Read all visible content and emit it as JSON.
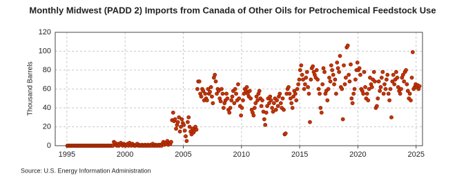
{
  "chart_data": {
    "type": "scatter",
    "title": "Monthly Midwest (PADD 2) Imports from Canada of Other Oils for Petrochemical Feedstock Use",
    "y_label": "Thousand Barrels",
    "source": "Source: U.S. Energy Information Administration",
    "color": "#c83200",
    "grid": true,
    "xlim": [
      1994,
      2025.55
    ],
    "ylim": [
      0,
      120
    ],
    "xticks": [
      1995,
      2000,
      2005,
      2010,
      2015,
      2020,
      2025
    ],
    "yticks": [
      0,
      20,
      40,
      60,
      80,
      100,
      120
    ],
    "x": [
      1995.04,
      1995.13,
      1995.21,
      1995.29,
      1995.38,
      1995.46,
      1995.54,
      1995.63,
      1995.71,
      1995.79,
      1995.88,
      1995.96,
      1996.04,
      1996.13,
      1996.21,
      1996.29,
      1996.38,
      1996.46,
      1996.54,
      1996.63,
      1996.71,
      1996.79,
      1996.88,
      1996.96,
      1997.04,
      1997.13,
      1997.21,
      1997.29,
      1997.38,
      1997.46,
      1997.54,
      1997.63,
      1997.71,
      1997.79,
      1997.88,
      1997.96,
      1998.04,
      1998.13,
      1998.21,
      1998.29,
      1998.38,
      1998.46,
      1998.54,
      1998.63,
      1998.71,
      1998.79,
      1998.88,
      1998.96,
      1999.04,
      1999.13,
      1999.21,
      1999.29,
      1999.38,
      1999.46,
      1999.54,
      1999.63,
      1999.71,
      1999.79,
      1999.88,
      1999.96,
      2000.04,
      2000.13,
      2000.21,
      2000.29,
      2000.38,
      2000.46,
      2000.54,
      2000.63,
      2000.71,
      2000.79,
      2000.88,
      2000.96,
      2001.04,
      2001.13,
      2001.21,
      2001.29,
      2001.38,
      2001.46,
      2001.54,
      2001.63,
      2001.71,
      2001.79,
      2001.88,
      2001.96,
      2002.04,
      2002.13,
      2002.21,
      2002.29,
      2002.38,
      2002.46,
      2002.54,
      2002.63,
      2002.71,
      2002.79,
      2002.88,
      2002.96,
      2003.04,
      2003.13,
      2003.21,
      2003.29,
      2003.38,
      2003.46,
      2003.54,
      2003.63,
      2003.71,
      2003.79,
      2003.88,
      2003.96,
      2004.04,
      2004.13,
      2004.21,
      2004.29,
      2004.38,
      2004.46,
      2004.54,
      2004.63,
      2004.71,
      2004.79,
      2004.88,
      2004.96,
      2005.04,
      2005.13,
      2005.21,
      2005.29,
      2005.38,
      2005.46,
      2005.54,
      2005.63,
      2005.71,
      2005.79,
      2005.88,
      2005.96,
      2006.04,
      2006.13,
      2006.21,
      2006.29,
      2006.38,
      2006.46,
      2006.54,
      2006.63,
      2006.71,
      2006.79,
      2006.88,
      2006.96,
      2007.04,
      2007.13,
      2007.21,
      2007.29,
      2007.38,
      2007.46,
      2007.54,
      2007.63,
      2007.71,
      2007.79,
      2007.88,
      2007.96,
      2008.04,
      2008.13,
      2008.21,
      2008.29,
      2008.38,
      2008.46,
      2008.54,
      2008.63,
      2008.71,
      2008.79,
      2008.88,
      2008.96,
      2009.04,
      2009.13,
      2009.21,
      2009.29,
      2009.38,
      2009.46,
      2009.54,
      2009.63,
      2009.71,
      2009.79,
      2009.88,
      2009.96,
      2010.04,
      2010.13,
      2010.21,
      2010.29,
      2010.38,
      2010.46,
      2010.54,
      2010.63,
      2010.71,
      2010.79,
      2010.88,
      2010.96,
      2011.04,
      2011.13,
      2011.21,
      2011.29,
      2011.38,
      2011.46,
      2011.54,
      2011.63,
      2011.71,
      2011.79,
      2011.88,
      2011.96,
      2012.04,
      2012.13,
      2012.21,
      2012.29,
      2012.38,
      2012.46,
      2012.54,
      2012.63,
      2012.71,
      2012.79,
      2012.88,
      2012.96,
      2013.04,
      2013.13,
      2013.21,
      2013.29,
      2013.38,
      2013.46,
      2013.54,
      2013.63,
      2013.71,
      2013.79,
      2013.88,
      2013.96,
      2014.04,
      2014.13,
      2014.21,
      2014.29,
      2014.38,
      2014.46,
      2014.54,
      2014.63,
      2014.71,
      2014.79,
      2014.88,
      2014.96,
      2015.04,
      2015.13,
      2015.21,
      2015.29,
      2015.38,
      2015.46,
      2015.54,
      2015.63,
      2015.71,
      2015.79,
      2015.88,
      2015.96,
      2016.04,
      2016.13,
      2016.21,
      2016.29,
      2016.38,
      2016.46,
      2016.54,
      2016.63,
      2016.71,
      2016.79,
      2016.88,
      2016.96,
      2017.04,
      2017.13,
      2017.21,
      2017.29,
      2017.38,
      2017.46,
      2017.54,
      2017.63,
      2017.71,
      2017.79,
      2017.88,
      2017.96,
      2018.04,
      2018.13,
      2018.21,
      2018.29,
      2018.38,
      2018.46,
      2018.54,
      2018.63,
      2018.71,
      2018.79,
      2018.88,
      2018.96,
      2019.04,
      2019.13,
      2019.21,
      2019.29,
      2019.38,
      2019.46,
      2019.54,
      2019.63,
      2019.71,
      2019.79,
      2019.88,
      2019.96,
      2020.04,
      2020.13,
      2020.21,
      2020.29,
      2020.38,
      2020.46,
      2020.54,
      2020.63,
      2020.71,
      2020.79,
      2020.88,
      2020.96,
      2021.04,
      2021.13,
      2021.21,
      2021.29,
      2021.38,
      2021.46,
      2021.54,
      2021.63,
      2021.71,
      2021.79,
      2021.88,
      2021.96,
      2022.04,
      2022.13,
      2022.21,
      2022.29,
      2022.38,
      2022.46,
      2022.54,
      2022.63,
      2022.71,
      2022.79,
      2022.88,
      2022.96,
      2023.04,
      2023.13,
      2023.21,
      2023.29,
      2023.38,
      2023.46,
      2023.54,
      2023.63,
      2023.71,
      2023.79,
      2023.88,
      2023.96,
      2024.04,
      2024.13,
      2024.21,
      2024.29,
      2024.38,
      2024.46,
      2024.54,
      2024.63,
      2024.71,
      2024.79,
      2024.88,
      2024.96,
      2025.04,
      2025.13,
      2025.21,
      2025.29
    ],
    "values": [
      0,
      0,
      0,
      0,
      0,
      0,
      0,
      0,
      0,
      0,
      0,
      0,
      0,
      0,
      0,
      0,
      0,
      0,
      0,
      0,
      0,
      0,
      0,
      0,
      0,
      0,
      0,
      0,
      0,
      0,
      0,
      0,
      0,
      0,
      0,
      0,
      0,
      0,
      0,
      0,
      0,
      0,
      0,
      0,
      0,
      0,
      0,
      0,
      4,
      3,
      1,
      0,
      2,
      0,
      1,
      3,
      1,
      0,
      2,
      1,
      0,
      1,
      2,
      0,
      3,
      1,
      0,
      2,
      1,
      0,
      0,
      1,
      2,
      0,
      1,
      0,
      0,
      1,
      0,
      0,
      1,
      0,
      0,
      1,
      0,
      0,
      1,
      0,
      2,
      0,
      0,
      1,
      0,
      0,
      1,
      0,
      1,
      0,
      2,
      4,
      1,
      3,
      2,
      5,
      1,
      3,
      2,
      4,
      27,
      35,
      26,
      28,
      18,
      22,
      25,
      30,
      15,
      20,
      28,
      24,
      22,
      16,
      10,
      5,
      25,
      30,
      20,
      15,
      12,
      18,
      14,
      16,
      20,
      17,
      60,
      68,
      68,
      55,
      52,
      60,
      58,
      48,
      55,
      50,
      48,
      60,
      55,
      57,
      62,
      52,
      45,
      72,
      75,
      68,
      55,
      60,
      58,
      50,
      47,
      60,
      55,
      40,
      45,
      48,
      55,
      50,
      38,
      35,
      40,
      48,
      52,
      58,
      45,
      60,
      55,
      48,
      65,
      50,
      42,
      32,
      40,
      48,
      55,
      60,
      58,
      62,
      55,
      52,
      58,
      50,
      38,
      35,
      32,
      40,
      45,
      52,
      48,
      55,
      58,
      50,
      42,
      48,
      36,
      28,
      22,
      35,
      42,
      50,
      45,
      52,
      48,
      40,
      36,
      45,
      50,
      38,
      48,
      42,
      52,
      55,
      45,
      40,
      50,
      38,
      12,
      13,
      55,
      60,
      62,
      55,
      50,
      45,
      40,
      52,
      58,
      55,
      48,
      60,
      65,
      70,
      80,
      85,
      75,
      70,
      60,
      65,
      72,
      78,
      62,
      55,
      25,
      70,
      82,
      84,
      78,
      75,
      72,
      80,
      70,
      60,
      55,
      40,
      35,
      65,
      82,
      78,
      55,
      58,
      48,
      60,
      72,
      68,
      85,
      80,
      75,
      65,
      70,
      55,
      88,
      82,
      78,
      95,
      62,
      60,
      28,
      85,
      65,
      72,
      104,
      106,
      75,
      68,
      86,
      50,
      45,
      55,
      60,
      70,
      80,
      88,
      80,
      82,
      75,
      60,
      58,
      55,
      78,
      62,
      50,
      55,
      48,
      60,
      72,
      65,
      62,
      70,
      78,
      68,
      40,
      42,
      50,
      68,
      58,
      62,
      72,
      78,
      55,
      65,
      60,
      70,
      75,
      55,
      48,
      60,
      30,
      68,
      75,
      65,
      70,
      78,
      72,
      62,
      58,
      55,
      60,
      72,
      75,
      68,
      78,
      80,
      65,
      58,
      50,
      55,
      48,
      72,
      99,
      60,
      62,
      65,
      62,
      64,
      60,
      63
    ]
  }
}
